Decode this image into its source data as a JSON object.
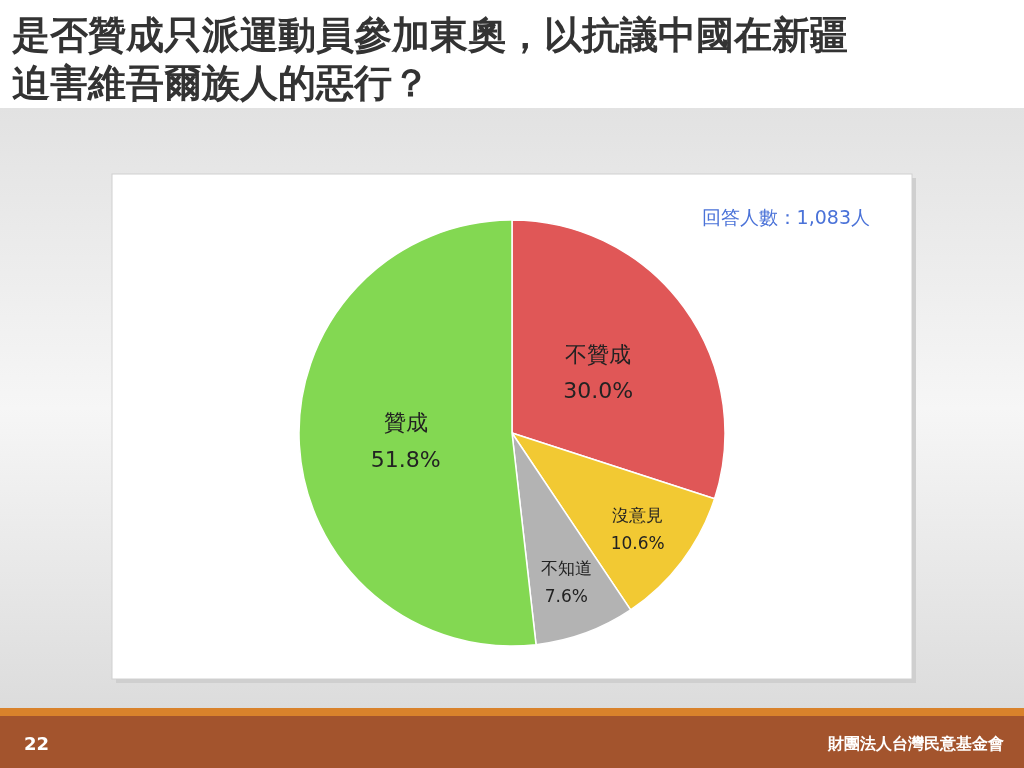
{
  "chart_data": {
    "type": "pie",
    "title": "是否贊成只派運動員參加東奧，以抗議中國在新疆迫害維吾爾族人的惡行？",
    "categories": [
      "不贊成",
      "沒意見",
      "不知道",
      "贊成"
    ],
    "values": [
      30.0,
      10.6,
      7.6,
      51.8
    ],
    "colors": [
      "#e05757",
      "#f2c933",
      "#b3b3b3",
      "#83d852"
    ],
    "value_labels": [
      "30.0%",
      "10.6%",
      "7.6%",
      "51.8%"
    ],
    "annotations": [
      "回答人數：1,083人",
      "22",
      "財團法人台灣民意基金會"
    ]
  }
}
